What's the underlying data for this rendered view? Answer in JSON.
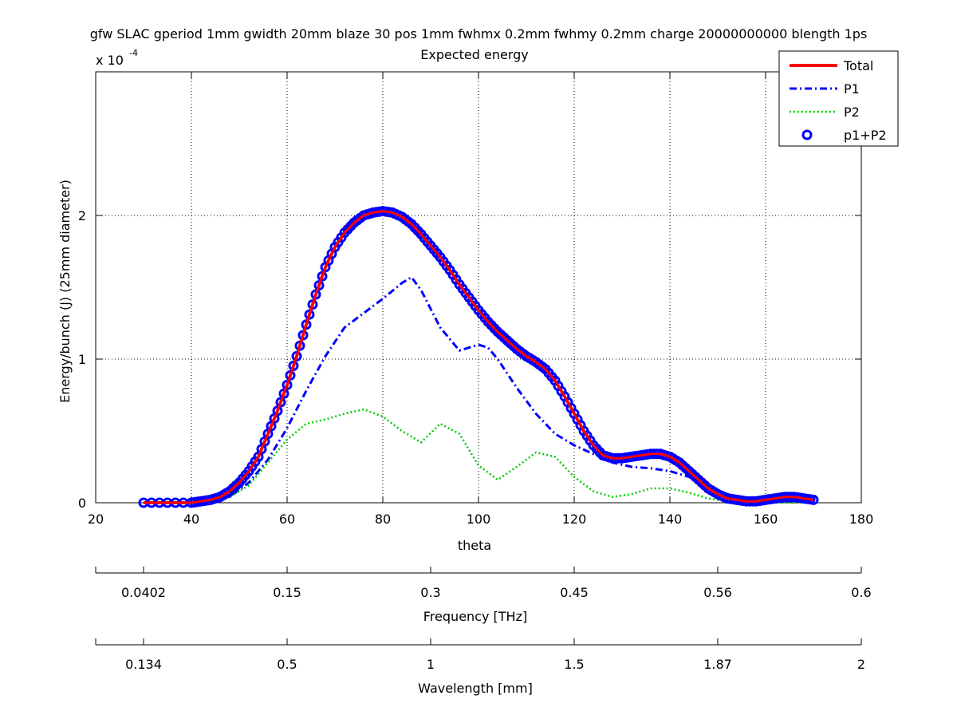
{
  "chart_data": {
    "type": "line",
    "title": "gfw SLAC gperiod 1mm gwidth 20mm blaze 30 pos 1mm fwhmx 0.2mm fwhmy 0.2mm charge 20000000000 blength 1ps",
    "subtitle": "Expected energy",
    "xlabel": "theta",
    "ylabel": "Energy/bunch (J) (25mm diameter)",
    "y_exponent_label": "x 10",
    "y_exponent_power": "-4",
    "xlim": [
      20,
      180
    ],
    "ylim": [
      0,
      3
    ],
    "grid": true,
    "legend_position": "top-right",
    "x_ticks": [
      20,
      40,
      60,
      80,
      100,
      120,
      140,
      160,
      180
    ],
    "x_tick_labels": [
      "20",
      "40",
      "60",
      "80",
      "100",
      "120",
      "140",
      "160",
      "180"
    ],
    "y_ticks": [
      0,
      1,
      2
    ],
    "y_tick_labels": [
      "0",
      "1",
      "2"
    ],
    "secondary_axes": [
      {
        "label": "Frequency [THz]",
        "tick_theta": [
          20,
          30,
          60,
          90,
          120,
          150,
          180
        ],
        "tick_labels": [
          "",
          "0.0402",
          "0.15",
          "0.3",
          "0.45",
          "0.56",
          "0.6"
        ]
      },
      {
        "label": "Wavelength [mm]",
        "tick_theta": [
          20,
          30,
          60,
          90,
          120,
          150,
          180
        ],
        "tick_labels": [
          "",
          "0.134",
          "0.5",
          "1",
          "1.5",
          "1.87",
          "2"
        ]
      }
    ],
    "series": [
      {
        "name": "Total",
        "style": "solid",
        "color": "#ff0000",
        "x": [
          30,
          35,
          40,
          42,
          44,
          46,
          48,
          50,
          52,
          54,
          56,
          58,
          60,
          62,
          64,
          66,
          68,
          70,
          72,
          74,
          76,
          78,
          80,
          82,
          84,
          86,
          88,
          90,
          92,
          94,
          96,
          98,
          100,
          102,
          104,
          106,
          108,
          110,
          112,
          114,
          116,
          118,
          120,
          122,
          124,
          126,
          128,
          130,
          132,
          134,
          136,
          138,
          140,
          142,
          144,
          146,
          148,
          150,
          152,
          154,
          156,
          158,
          160,
          162,
          164,
          166,
          168,
          170
        ],
        "y": [
          0,
          0,
          0,
          0.01,
          0.02,
          0.04,
          0.08,
          0.14,
          0.22,
          0.32,
          0.48,
          0.64,
          0.82,
          1.02,
          1.24,
          1.45,
          1.64,
          1.78,
          1.88,
          1.95,
          2.0,
          2.02,
          2.03,
          2.02,
          1.99,
          1.94,
          1.87,
          1.79,
          1.71,
          1.62,
          1.52,
          1.43,
          1.34,
          1.26,
          1.19,
          1.13,
          1.07,
          1.02,
          0.98,
          0.93,
          0.85,
          0.74,
          0.62,
          0.5,
          0.4,
          0.33,
          0.31,
          0.31,
          0.32,
          0.33,
          0.34,
          0.34,
          0.32,
          0.28,
          0.22,
          0.16,
          0.1,
          0.06,
          0.03,
          0.02,
          0.01,
          0.01,
          0.02,
          0.03,
          0.04,
          0.04,
          0.03,
          0.02
        ]
      },
      {
        "name": "P1",
        "style": "dashdot",
        "color": "#0000ff",
        "x": [
          30,
          40,
          44,
          48,
          52,
          56,
          60,
          64,
          68,
          72,
          76,
          80,
          84,
          86,
          88,
          92,
          96,
          100,
          102,
          104,
          108,
          112,
          116,
          120,
          124,
          128,
          132,
          136,
          140,
          144,
          148,
          152,
          156,
          160,
          164,
          168,
          170
        ],
        "y": [
          0,
          0,
          0.01,
          0.04,
          0.14,
          0.3,
          0.52,
          0.78,
          1.02,
          1.22,
          1.32,
          1.42,
          1.53,
          1.57,
          1.48,
          1.22,
          1.06,
          1.1,
          1.08,
          1.0,
          0.8,
          0.62,
          0.48,
          0.4,
          0.34,
          0.28,
          0.25,
          0.24,
          0.22,
          0.18,
          0.12,
          0.06,
          0.02,
          0.01,
          0.01,
          0.01,
          0.0
        ]
      },
      {
        "name": "P2",
        "style": "dotted",
        "color": "#00cc00",
        "x": [
          30,
          40,
          44,
          48,
          52,
          56,
          60,
          64,
          68,
          72,
          76,
          80,
          84,
          88,
          92,
          96,
          100,
          104,
          108,
          112,
          116,
          120,
          124,
          128,
          132,
          136,
          140,
          144,
          148,
          152,
          156,
          160,
          164,
          168,
          170
        ],
        "y": [
          0,
          0,
          0.01,
          0.04,
          0.12,
          0.28,
          0.44,
          0.55,
          0.58,
          0.62,
          0.65,
          0.6,
          0.5,
          0.42,
          0.55,
          0.48,
          0.26,
          0.16,
          0.25,
          0.35,
          0.32,
          0.18,
          0.08,
          0.04,
          0.06,
          0.1,
          0.1,
          0.07,
          0.03,
          0.01,
          0.0,
          0.0,
          0.0,
          0.0,
          0.0
        ]
      },
      {
        "name": "p1+P2",
        "style": "circles",
        "color": "#0000ff",
        "x": [
          30,
          35,
          40,
          42,
          44,
          46,
          48,
          50,
          52,
          54,
          56,
          58,
          60,
          62,
          64,
          66,
          68,
          70,
          72,
          74,
          76,
          78,
          80,
          82,
          84,
          86,
          88,
          90,
          92,
          94,
          96,
          98,
          100,
          102,
          104,
          106,
          108,
          110,
          112,
          114,
          116,
          118,
          120,
          122,
          124,
          126,
          128,
          130,
          132,
          134,
          136,
          138,
          140,
          142,
          144,
          146,
          148,
          150,
          152,
          154,
          156,
          158,
          160,
          162,
          164,
          166,
          168,
          170
        ],
        "y": [
          0,
          0,
          0,
          0.01,
          0.02,
          0.04,
          0.08,
          0.14,
          0.22,
          0.32,
          0.48,
          0.64,
          0.82,
          1.02,
          1.24,
          1.45,
          1.64,
          1.78,
          1.88,
          1.95,
          2.0,
          2.02,
          2.03,
          2.02,
          1.99,
          1.94,
          1.87,
          1.79,
          1.71,
          1.62,
          1.52,
          1.43,
          1.34,
          1.26,
          1.19,
          1.13,
          1.07,
          1.02,
          0.98,
          0.93,
          0.85,
          0.74,
          0.62,
          0.5,
          0.4,
          0.33,
          0.31,
          0.31,
          0.32,
          0.33,
          0.34,
          0.34,
          0.32,
          0.28,
          0.22,
          0.16,
          0.1,
          0.06,
          0.03,
          0.02,
          0.01,
          0.01,
          0.02,
          0.03,
          0.04,
          0.04,
          0.03,
          0.02
        ]
      }
    ]
  }
}
